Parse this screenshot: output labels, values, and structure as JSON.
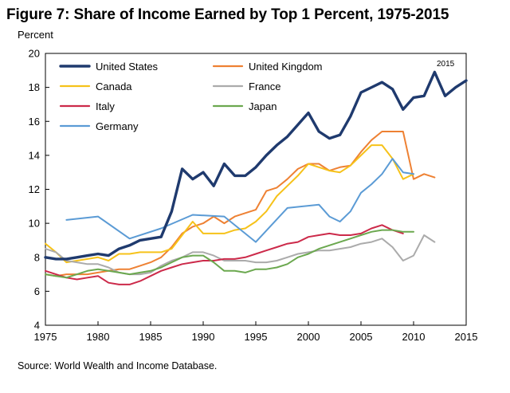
{
  "chart_data": {
    "type": "line",
    "title": "Figure 7: Share of Income Earned by Top 1 Percent, 1975-2015",
    "ylabel": "Percent",
    "xlabel": "",
    "source": "Source: World Wealth and Income Database.",
    "annotation": "2015",
    "xlim": [
      1975,
      2015
    ],
    "ylim": [
      4,
      20
    ],
    "xticks": [
      1975,
      1980,
      1985,
      1990,
      1995,
      2000,
      2005,
      2010,
      2015
    ],
    "yticks": [
      4,
      6,
      8,
      10,
      12,
      14,
      16,
      18,
      20
    ],
    "grid": false,
    "legend_position": "top-left",
    "series": [
      {
        "name": "United States",
        "color": "#1f3a6e",
        "width": 3.4,
        "points": [
          [
            1975,
            8.0
          ],
          [
            1976,
            7.9
          ],
          [
            1977,
            7.9
          ],
          [
            1978,
            8.0
          ],
          [
            1979,
            8.1
          ],
          [
            1980,
            8.2
          ],
          [
            1981,
            8.1
          ],
          [
            1982,
            8.5
          ],
          [
            1983,
            8.7
          ],
          [
            1984,
            9.0
          ],
          [
            1985,
            9.1
          ],
          [
            1986,
            9.2
          ],
          [
            1987,
            10.7
          ],
          [
            1988,
            13.2
          ],
          [
            1989,
            12.6
          ],
          [
            1990,
            13.0
          ],
          [
            1991,
            12.2
          ],
          [
            1992,
            13.5
          ],
          [
            1993,
            12.8
          ],
          [
            1994,
            12.8
          ],
          [
            1995,
            13.3
          ],
          [
            1996,
            14.0
          ],
          [
            1997,
            14.6
          ],
          [
            1998,
            15.1
          ],
          [
            1999,
            15.8
          ],
          [
            2000,
            16.5
          ],
          [
            2001,
            15.4
          ],
          [
            2002,
            15.0
          ],
          [
            2003,
            15.2
          ],
          [
            2004,
            16.3
          ],
          [
            2005,
            17.7
          ],
          [
            2006,
            18.0
          ],
          [
            2007,
            18.3
          ],
          [
            2008,
            17.9
          ],
          [
            2009,
            16.7
          ],
          [
            2010,
            17.4
          ],
          [
            2011,
            17.5
          ],
          [
            2012,
            18.9
          ],
          [
            2013,
            17.5
          ],
          [
            2014,
            18.0
          ],
          [
            2015,
            18.4
          ]
        ]
      },
      {
        "name": "United Kingdom",
        "color": "#ee8133",
        "width": 2,
        "points": [
          [
            1975,
            7.0
          ],
          [
            1976,
            6.9
          ],
          [
            1977,
            7.0
          ],
          [
            1978,
            7.0
          ],
          [
            1979,
            7.0
          ],
          [
            1980,
            7.1
          ],
          [
            1981,
            7.2
          ],
          [
            1982,
            7.3
          ],
          [
            1983,
            7.3
          ],
          [
            1984,
            7.5
          ],
          [
            1985,
            7.7
          ],
          [
            1986,
            8.0
          ],
          [
            1987,
            8.6
          ],
          [
            1988,
            9.4
          ],
          [
            1989,
            9.8
          ],
          [
            1990,
            10.0
          ],
          [
            1991,
            10.4
          ],
          [
            1992,
            10.0
          ],
          [
            1993,
            10.4
          ],
          [
            1994,
            10.6
          ],
          [
            1995,
            10.8
          ],
          [
            1996,
            11.9
          ],
          [
            1997,
            12.1
          ],
          [
            1998,
            12.6
          ],
          [
            1999,
            13.2
          ],
          [
            2000,
            13.5
          ],
          [
            2001,
            13.5
          ],
          [
            2002,
            13.1
          ],
          [
            2003,
            13.3
          ],
          [
            2004,
            13.4
          ],
          [
            2005,
            14.2
          ],
          [
            2006,
            14.9
          ],
          [
            2007,
            15.4
          ],
          [
            2008,
            15.4
          ],
          [
            2009,
            15.4
          ],
          [
            2010,
            12.6
          ],
          [
            2011,
            12.9
          ],
          [
            2012,
            12.7
          ]
        ]
      },
      {
        "name": "Canada",
        "color": "#f6c21a",
        "width": 2,
        "points": [
          [
            1975,
            8.8
          ],
          [
            1976,
            8.3
          ],
          [
            1977,
            7.7
          ],
          [
            1978,
            7.8
          ],
          [
            1979,
            7.9
          ],
          [
            1980,
            8.0
          ],
          [
            1981,
            7.8
          ],
          [
            1982,
            8.2
          ],
          [
            1983,
            8.2
          ],
          [
            1984,
            8.3
          ],
          [
            1985,
            8.3
          ],
          [
            1986,
            8.3
          ],
          [
            1987,
            8.5
          ],
          [
            1988,
            9.3
          ],
          [
            1989,
            10.1
          ],
          [
            1990,
            9.4
          ],
          [
            1991,
            9.4
          ],
          [
            1992,
            9.4
          ],
          [
            1993,
            9.6
          ],
          [
            1994,
            9.7
          ],
          [
            1995,
            10.1
          ],
          [
            1996,
            10.7
          ],
          [
            1997,
            11.6
          ],
          [
            1998,
            12.2
          ],
          [
            1999,
            12.8
          ],
          [
            2000,
            13.5
          ],
          [
            2001,
            13.3
          ],
          [
            2002,
            13.1
          ],
          [
            2003,
            13.0
          ],
          [
            2004,
            13.4
          ],
          [
            2005,
            14.0
          ],
          [
            2006,
            14.6
          ],
          [
            2007,
            14.6
          ],
          [
            2008,
            13.8
          ],
          [
            2009,
            12.6
          ],
          [
            2010,
            12.9
          ]
        ]
      },
      {
        "name": "France",
        "color": "#ababab",
        "width": 2,
        "points": [
          [
            1975,
            8.5
          ],
          [
            1976,
            8.3
          ],
          [
            1977,
            7.8
          ],
          [
            1978,
            7.7
          ],
          [
            1979,
            7.6
          ],
          [
            1980,
            7.6
          ],
          [
            1981,
            7.4
          ],
          [
            1982,
            7.1
          ],
          [
            1983,
            7.0
          ],
          [
            1984,
            7.0
          ],
          [
            1985,
            7.1
          ],
          [
            1986,
            7.5
          ],
          [
            1987,
            7.8
          ],
          [
            1988,
            8.0
          ],
          [
            1989,
            8.3
          ],
          [
            1990,
            8.3
          ],
          [
            1991,
            8.1
          ],
          [
            1992,
            7.8
          ],
          [
            1993,
            7.8
          ],
          [
            1994,
            7.8
          ],
          [
            1995,
            7.7
          ],
          [
            1996,
            7.7
          ],
          [
            1997,
            7.8
          ],
          [
            1998,
            8.0
          ],
          [
            1999,
            8.2
          ],
          [
            2000,
            8.3
          ],
          [
            2001,
            8.4
          ],
          [
            2002,
            8.4
          ],
          [
            2003,
            8.5
          ],
          [
            2004,
            8.6
          ],
          [
            2005,
            8.8
          ],
          [
            2006,
            8.9
          ],
          [
            2007,
            9.1
          ],
          [
            2008,
            8.6
          ],
          [
            2009,
            7.8
          ],
          [
            2010,
            8.1
          ],
          [
            2011,
            9.3
          ],
          [
            2012,
            8.9
          ]
        ]
      },
      {
        "name": "Italy",
        "color": "#cc2a4a",
        "width": 2,
        "points": [
          [
            1975,
            7.2
          ],
          [
            1976,
            7.0
          ],
          [
            1977,
            6.8
          ],
          [
            1978,
            6.7
          ],
          [
            1979,
            6.8
          ],
          [
            1980,
            6.9
          ],
          [
            1981,
            6.5
          ],
          [
            1982,
            6.4
          ],
          [
            1983,
            6.4
          ],
          [
            1984,
            6.6
          ],
          [
            1985,
            6.9
          ],
          [
            1986,
            7.2
          ],
          [
            1987,
            7.4
          ],
          [
            1988,
            7.6
          ],
          [
            1989,
            7.7
          ],
          [
            1990,
            7.8
          ],
          [
            1991,
            7.8
          ],
          [
            1992,
            7.9
          ],
          [
            1993,
            7.9
          ],
          [
            1994,
            8.0
          ],
          [
            1995,
            8.2
          ],
          [
            1996,
            8.4
          ],
          [
            1997,
            8.6
          ],
          [
            1998,
            8.8
          ],
          [
            1999,
            8.9
          ],
          [
            2000,
            9.2
          ],
          [
            2001,
            9.3
          ],
          [
            2002,
            9.4
          ],
          [
            2003,
            9.3
          ],
          [
            2004,
            9.3
          ],
          [
            2005,
            9.4
          ],
          [
            2006,
            9.7
          ],
          [
            2007,
            9.9
          ],
          [
            2008,
            9.6
          ],
          [
            2009,
            9.4
          ]
        ]
      },
      {
        "name": "Japan",
        "color": "#6ba84f",
        "width": 2,
        "points": [
          [
            1975,
            7.0
          ],
          [
            1976,
            6.9
          ],
          [
            1977,
            6.8
          ],
          [
            1978,
            7.0
          ],
          [
            1979,
            7.2
          ],
          [
            1980,
            7.3
          ],
          [
            1981,
            7.2
          ],
          [
            1982,
            7.1
          ],
          [
            1983,
            7.0
          ],
          [
            1984,
            7.1
          ],
          [
            1985,
            7.2
          ],
          [
            1986,
            7.4
          ],
          [
            1987,
            7.7
          ],
          [
            1988,
            8.0
          ],
          [
            1989,
            8.1
          ],
          [
            1990,
            8.1
          ],
          [
            1991,
            7.7
          ],
          [
            1992,
            7.2
          ],
          [
            1993,
            7.2
          ],
          [
            1994,
            7.1
          ],
          [
            1995,
            7.3
          ],
          [
            1996,
            7.3
          ],
          [
            1997,
            7.4
          ],
          [
            1998,
            7.6
          ],
          [
            1999,
            8.0
          ],
          [
            2000,
            8.2
          ],
          [
            2001,
            8.5
          ],
          [
            2002,
            8.7
          ],
          [
            2003,
            8.9
          ],
          [
            2004,
            9.1
          ],
          [
            2005,
            9.3
          ],
          [
            2006,
            9.5
          ],
          [
            2007,
            9.6
          ],
          [
            2008,
            9.6
          ],
          [
            2009,
            9.5
          ],
          [
            2010,
            9.5
          ]
        ]
      },
      {
        "name": "Germany",
        "color": "#5b9bd5",
        "width": 2,
        "points": [
          [
            1977,
            10.2
          ],
          [
            1980,
            10.4
          ],
          [
            1983,
            9.1
          ],
          [
            1986,
            9.7
          ],
          [
            1989,
            10.5
          ],
          [
            1992,
            10.4
          ],
          [
            1995,
            8.9
          ],
          [
            1998,
            10.9
          ],
          [
            2001,
            11.1
          ],
          [
            2002,
            10.4
          ],
          [
            2003,
            10.1
          ],
          [
            2004,
            10.7
          ],
          [
            2005,
            11.8
          ],
          [
            2006,
            12.3
          ],
          [
            2007,
            12.9
          ],
          [
            2008,
            13.8
          ],
          [
            2009,
            13.0
          ],
          [
            2010,
            12.9
          ]
        ]
      }
    ]
  }
}
